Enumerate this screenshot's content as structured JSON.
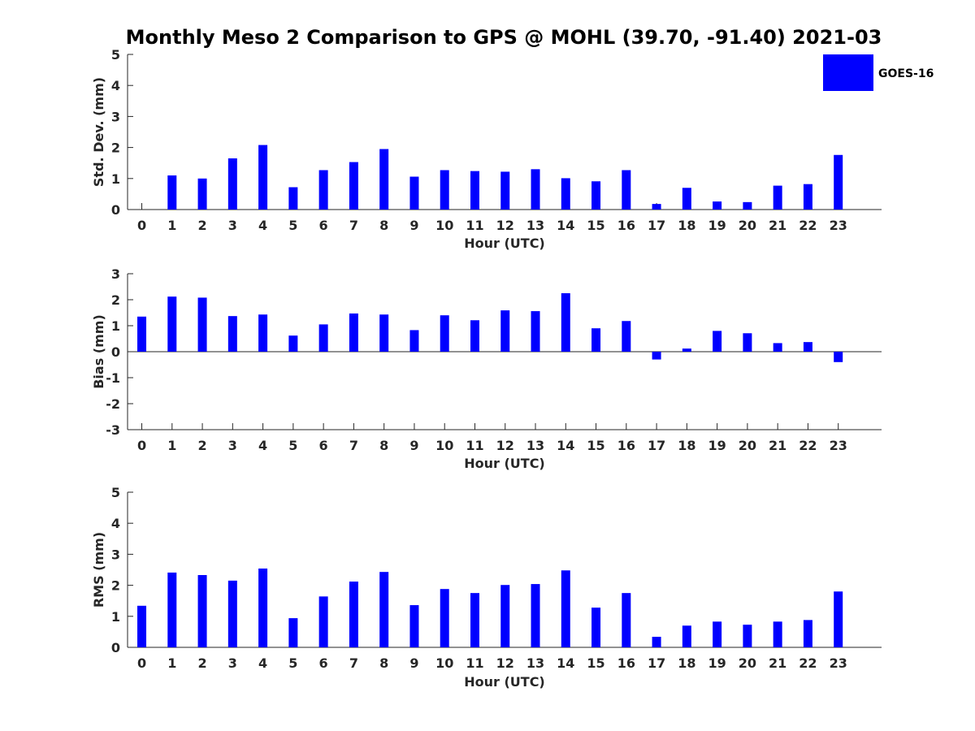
{
  "title": "Monthly Meso 2 Comparison to GPS @ MOHL (39.70, -91.40) 2021-03",
  "legend": {
    "label": "GOES-16",
    "color": "#0000ff"
  },
  "chart_data": [
    {
      "type": "bar",
      "xlabel": "Hour (UTC)",
      "ylabel": "Std. Dev. (mm)",
      "ylim": [
        0,
        5
      ],
      "yticks": [
        0,
        1,
        2,
        3,
        4,
        5
      ],
      "categories": [
        "0",
        "1",
        "2",
        "3",
        "4",
        "5",
        "6",
        "7",
        "8",
        "9",
        "10",
        "11",
        "12",
        "13",
        "14",
        "15",
        "16",
        "17",
        "18",
        "19",
        "20",
        "21",
        "22",
        "23"
      ],
      "series": [
        {
          "name": "GOES-16",
          "values": [
            0.0,
            1.1,
            1.0,
            1.65,
            2.08,
            0.72,
            1.27,
            1.53,
            1.95,
            1.06,
            1.27,
            1.24,
            1.22,
            1.3,
            1.01,
            0.91,
            1.27,
            0.18,
            0.7,
            0.26,
            0.24,
            0.77,
            0.82,
            1.76
          ]
        }
      ],
      "grid": false,
      "legend_position": "top-right"
    },
    {
      "type": "bar",
      "xlabel": "Hour (UTC)",
      "ylabel": "Bias (mm)",
      "ylim": [
        -3,
        3
      ],
      "yticks": [
        -3,
        -2,
        -1,
        0,
        1,
        2,
        3
      ],
      "categories": [
        "0",
        "1",
        "2",
        "3",
        "4",
        "5",
        "6",
        "7",
        "8",
        "9",
        "10",
        "11",
        "12",
        "13",
        "14",
        "15",
        "16",
        "17",
        "18",
        "19",
        "20",
        "21",
        "22",
        "23"
      ],
      "series": [
        {
          "name": "GOES-16",
          "values": [
            1.35,
            2.12,
            2.08,
            1.37,
            1.43,
            0.62,
            1.05,
            1.47,
            1.43,
            0.83,
            1.4,
            1.21,
            1.59,
            1.56,
            2.25,
            0.9,
            1.18,
            -0.3,
            0.12,
            0.8,
            0.71,
            0.33,
            0.37,
            -0.4
          ]
        }
      ],
      "grid": false
    },
    {
      "type": "bar",
      "xlabel": "Hour (UTC)",
      "ylabel": "RMS (mm)",
      "ylim": [
        0,
        5
      ],
      "yticks": [
        0,
        1,
        2,
        3,
        4,
        5
      ],
      "categories": [
        "0",
        "1",
        "2",
        "3",
        "4",
        "5",
        "6",
        "7",
        "8",
        "9",
        "10",
        "11",
        "12",
        "13",
        "14",
        "15",
        "16",
        "17",
        "18",
        "19",
        "20",
        "21",
        "22",
        "23"
      ],
      "series": [
        {
          "name": "GOES-16",
          "values": [
            1.34,
            2.41,
            2.33,
            2.15,
            2.54,
            0.94,
            1.64,
            2.12,
            2.43,
            1.36,
            1.88,
            1.75,
            2.01,
            2.04,
            2.48,
            1.28,
            1.75,
            0.34,
            0.7,
            0.83,
            0.73,
            0.83,
            0.88,
            1.8
          ]
        }
      ],
      "grid": false
    }
  ]
}
